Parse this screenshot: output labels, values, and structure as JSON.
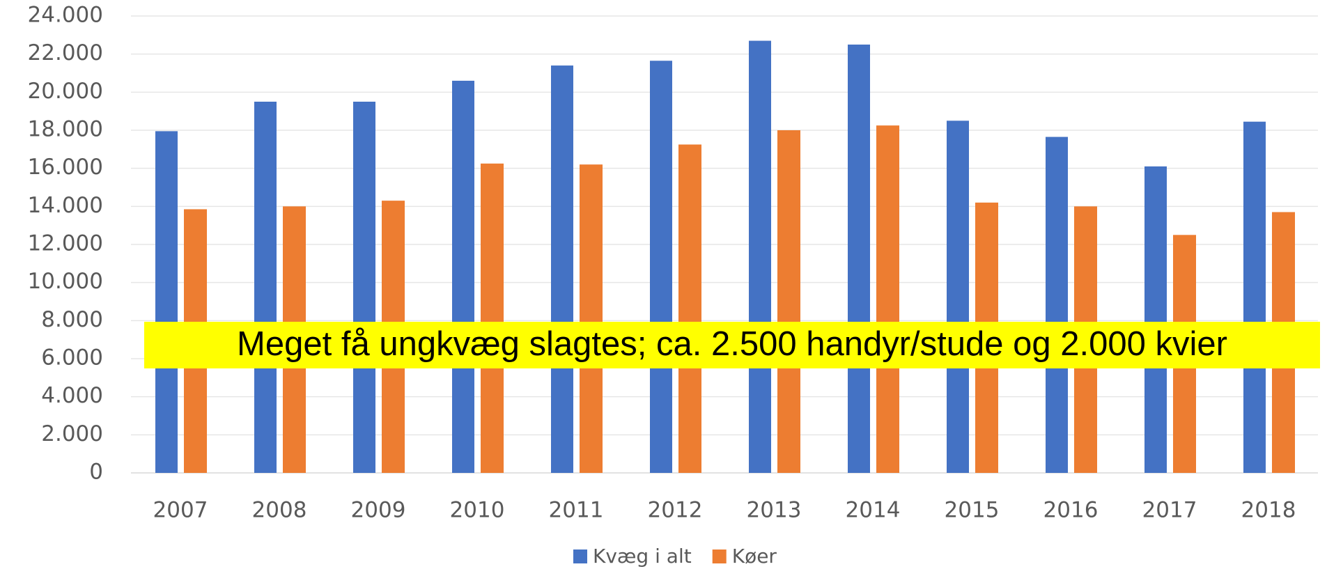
{
  "chart_data": {
    "type": "bar",
    "annotation": "Meget få ungkvæg slagtes; ca. 2.500 handyr/stude og 2.000 kvier",
    "categories": [
      "2007",
      "2008",
      "2009",
      "2010",
      "2011",
      "2012",
      "2013",
      "2014",
      "2015",
      "2016",
      "2017",
      "2018"
    ],
    "series": [
      {
        "name": "Kvæg i alt",
        "color": "#4472c4",
        "values": [
          17950,
          19500,
          19500,
          20600,
          21400,
          21650,
          22700,
          22500,
          18500,
          17650,
          16100,
          18450
        ]
      },
      {
        "name": "Køer",
        "color": "#ed7d31",
        "values": [
          13850,
          14000,
          14300,
          16250,
          16200,
          17250,
          18000,
          18250,
          14200,
          14000,
          12500,
          13700
        ]
      }
    ],
    "ylim": [
      0,
      24000
    ],
    "yticks": [
      0,
      {
        "value": 2000,
        "label": "2.000"
      },
      {
        "value": 4000,
        "label": "4.000"
      },
      {
        "value": 6000,
        "label": "6.000"
      },
      {
        "value": 8000,
        "label": "8.000"
      },
      {
        "value": 10000,
        "label": "10.000"
      },
      {
        "value": 12000,
        "label": "12.000"
      },
      {
        "value": 14000,
        "label": "14.000"
      },
      {
        "value": 16000,
        "label": "16.000"
      },
      {
        "value": 18000,
        "label": "18.000"
      },
      {
        "value": 20000,
        "label": "20.000"
      },
      {
        "value": 22000,
        "label": "22.000"
      },
      {
        "value": 24000,
        "label": "24.000"
      }
    ],
    "grid": true,
    "legend": "bottom"
  }
}
